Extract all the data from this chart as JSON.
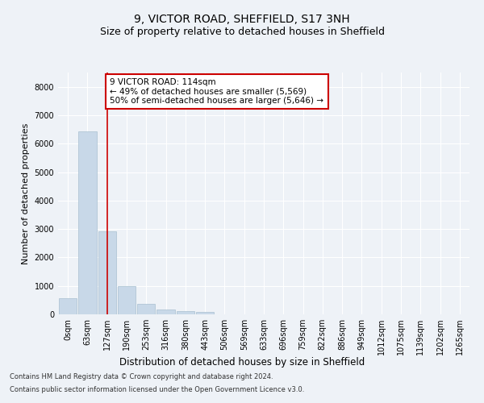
{
  "title_line1": "9, VICTOR ROAD, SHEFFIELD, S17 3NH",
  "title_line2": "Size of property relative to detached houses in Sheffield",
  "xlabel": "Distribution of detached houses by size in Sheffield",
  "ylabel": "Number of detached properties",
  "bar_color": "#c8d8e8",
  "bar_edgecolor": "#a8c0d0",
  "categories": [
    "0sqm",
    "63sqm",
    "127sqm",
    "190sqm",
    "253sqm",
    "316sqm",
    "380sqm",
    "443sqm",
    "506sqm",
    "569sqm",
    "633sqm",
    "696sqm",
    "759sqm",
    "822sqm",
    "886sqm",
    "949sqm",
    "1012sqm",
    "1075sqm",
    "1139sqm",
    "1202sqm",
    "1265sqm"
  ],
  "values": [
    570,
    6430,
    2920,
    985,
    355,
    165,
    100,
    90,
    0,
    0,
    0,
    0,
    0,
    0,
    0,
    0,
    0,
    0,
    0,
    0,
    0
  ],
  "ylim": [
    0,
    8500
  ],
  "yticks": [
    0,
    1000,
    2000,
    3000,
    4000,
    5000,
    6000,
    7000,
    8000
  ],
  "property_line_x": 2,
  "annotation_text": "9 VICTOR ROAD: 114sqm\n← 49% of detached houses are smaller (5,569)\n50% of semi-detached houses are larger (5,646) →",
  "annotation_box_color": "#ffffff",
  "annotation_box_edgecolor": "#cc0000",
  "footer_line1": "Contains HM Land Registry data © Crown copyright and database right 2024.",
  "footer_line2": "Contains public sector information licensed under the Open Government Licence v3.0.",
  "background_color": "#eef2f7",
  "grid_color": "#ffffff",
  "title1_fontsize": 10,
  "title2_fontsize": 9,
  "tick_fontsize": 7,
  "ylabel_fontsize": 8,
  "xlabel_fontsize": 8.5,
  "annotation_fontsize": 7.5,
  "footer_fontsize": 6
}
